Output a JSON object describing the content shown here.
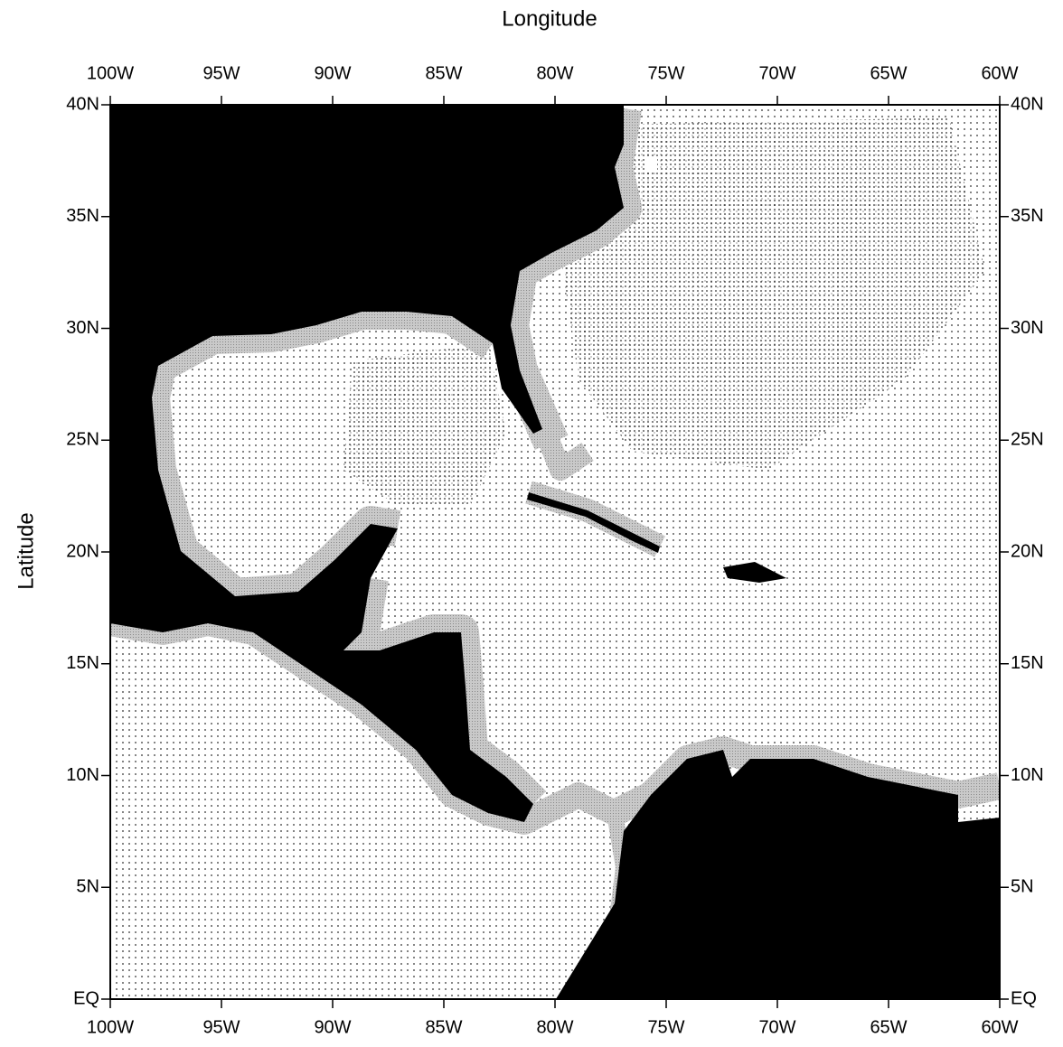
{
  "chart_data": {
    "type": "map",
    "xlabel": "Longitude",
    "ylabel": "Latitude",
    "xlim": [
      -100,
      -60
    ],
    "ylim": [
      0,
      40
    ],
    "xticks": [
      {
        "value": -100,
        "label": "100W"
      },
      {
        "value": -95,
        "label": "95W"
      },
      {
        "value": -90,
        "label": "90W"
      },
      {
        "value": -85,
        "label": "85W"
      },
      {
        "value": -80,
        "label": "80W"
      },
      {
        "value": -75,
        "label": "75W"
      },
      {
        "value": -70,
        "label": "70W"
      },
      {
        "value": -65,
        "label": "65W"
      },
      {
        "value": -60,
        "label": "60W"
      }
    ],
    "yticks": [
      {
        "value": 0,
        "label": "EQ"
      },
      {
        "value": 5,
        "label": "5N"
      },
      {
        "value": 10,
        "label": "10N"
      },
      {
        "value": 15,
        "label": "15N"
      },
      {
        "value": 20,
        "label": "20N"
      },
      {
        "value": 25,
        "label": "25N"
      },
      {
        "value": 30,
        "label": "30N"
      },
      {
        "value": 35,
        "label": "35N"
      },
      {
        "value": 40,
        "label": "40N"
      }
    ]
  }
}
